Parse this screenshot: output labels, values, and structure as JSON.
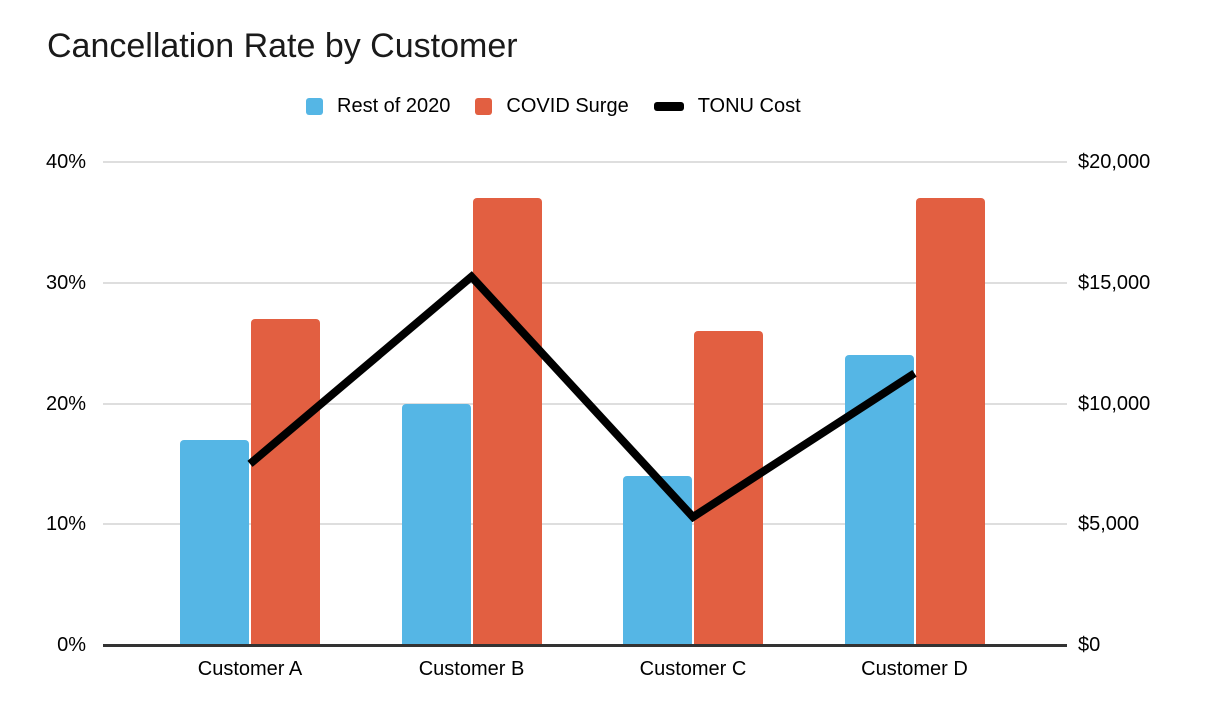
{
  "title": "Cancellation Rate by Customer",
  "legend": {
    "items": [
      {
        "label": "Rest of 2020",
        "swatch": "square",
        "color": "#55B6E5"
      },
      {
        "label": "COVID Surge",
        "swatch": "square",
        "color": "#E25F41"
      },
      {
        "label": "TONU Cost",
        "swatch": "dash",
        "color": "#000000"
      }
    ]
  },
  "chart_data": {
    "type": "combo-bar-line",
    "title": "Cancellation Rate by Customer",
    "categories": [
      "Customer A",
      "Customer B",
      "Customer C",
      "Customer D"
    ],
    "series": [
      {
        "name": "Rest of 2020",
        "type": "bar",
        "axis": "left",
        "color": "#55B6E5",
        "unit": "percent",
        "values": [
          17,
          20,
          14,
          24
        ]
      },
      {
        "name": "COVID Surge",
        "type": "bar",
        "axis": "left",
        "color": "#E25F41",
        "unit": "percent",
        "values": [
          27,
          37,
          26,
          37
        ]
      },
      {
        "name": "TONU Cost",
        "type": "line",
        "axis": "right",
        "color": "#000000",
        "unit": "usd",
        "values": [
          7500,
          15250,
          5300,
          11250
        ]
      }
    ],
    "left_axis": {
      "min": 0,
      "max": 40,
      "ticks": [
        "0%",
        "10%",
        "20%",
        "30%",
        "40%"
      ]
    },
    "right_axis": {
      "min": 0,
      "max": 20000,
      "ticks": [
        "$0",
        "$5,000",
        "$10,000",
        "$15,000",
        "$20,000"
      ]
    },
    "grid": true,
    "legend_position": "top"
  },
  "colors": {
    "background": "#FFFFFF",
    "gridline": "#DEDEDE",
    "axis_line": "#333333",
    "text": "#000000"
  }
}
